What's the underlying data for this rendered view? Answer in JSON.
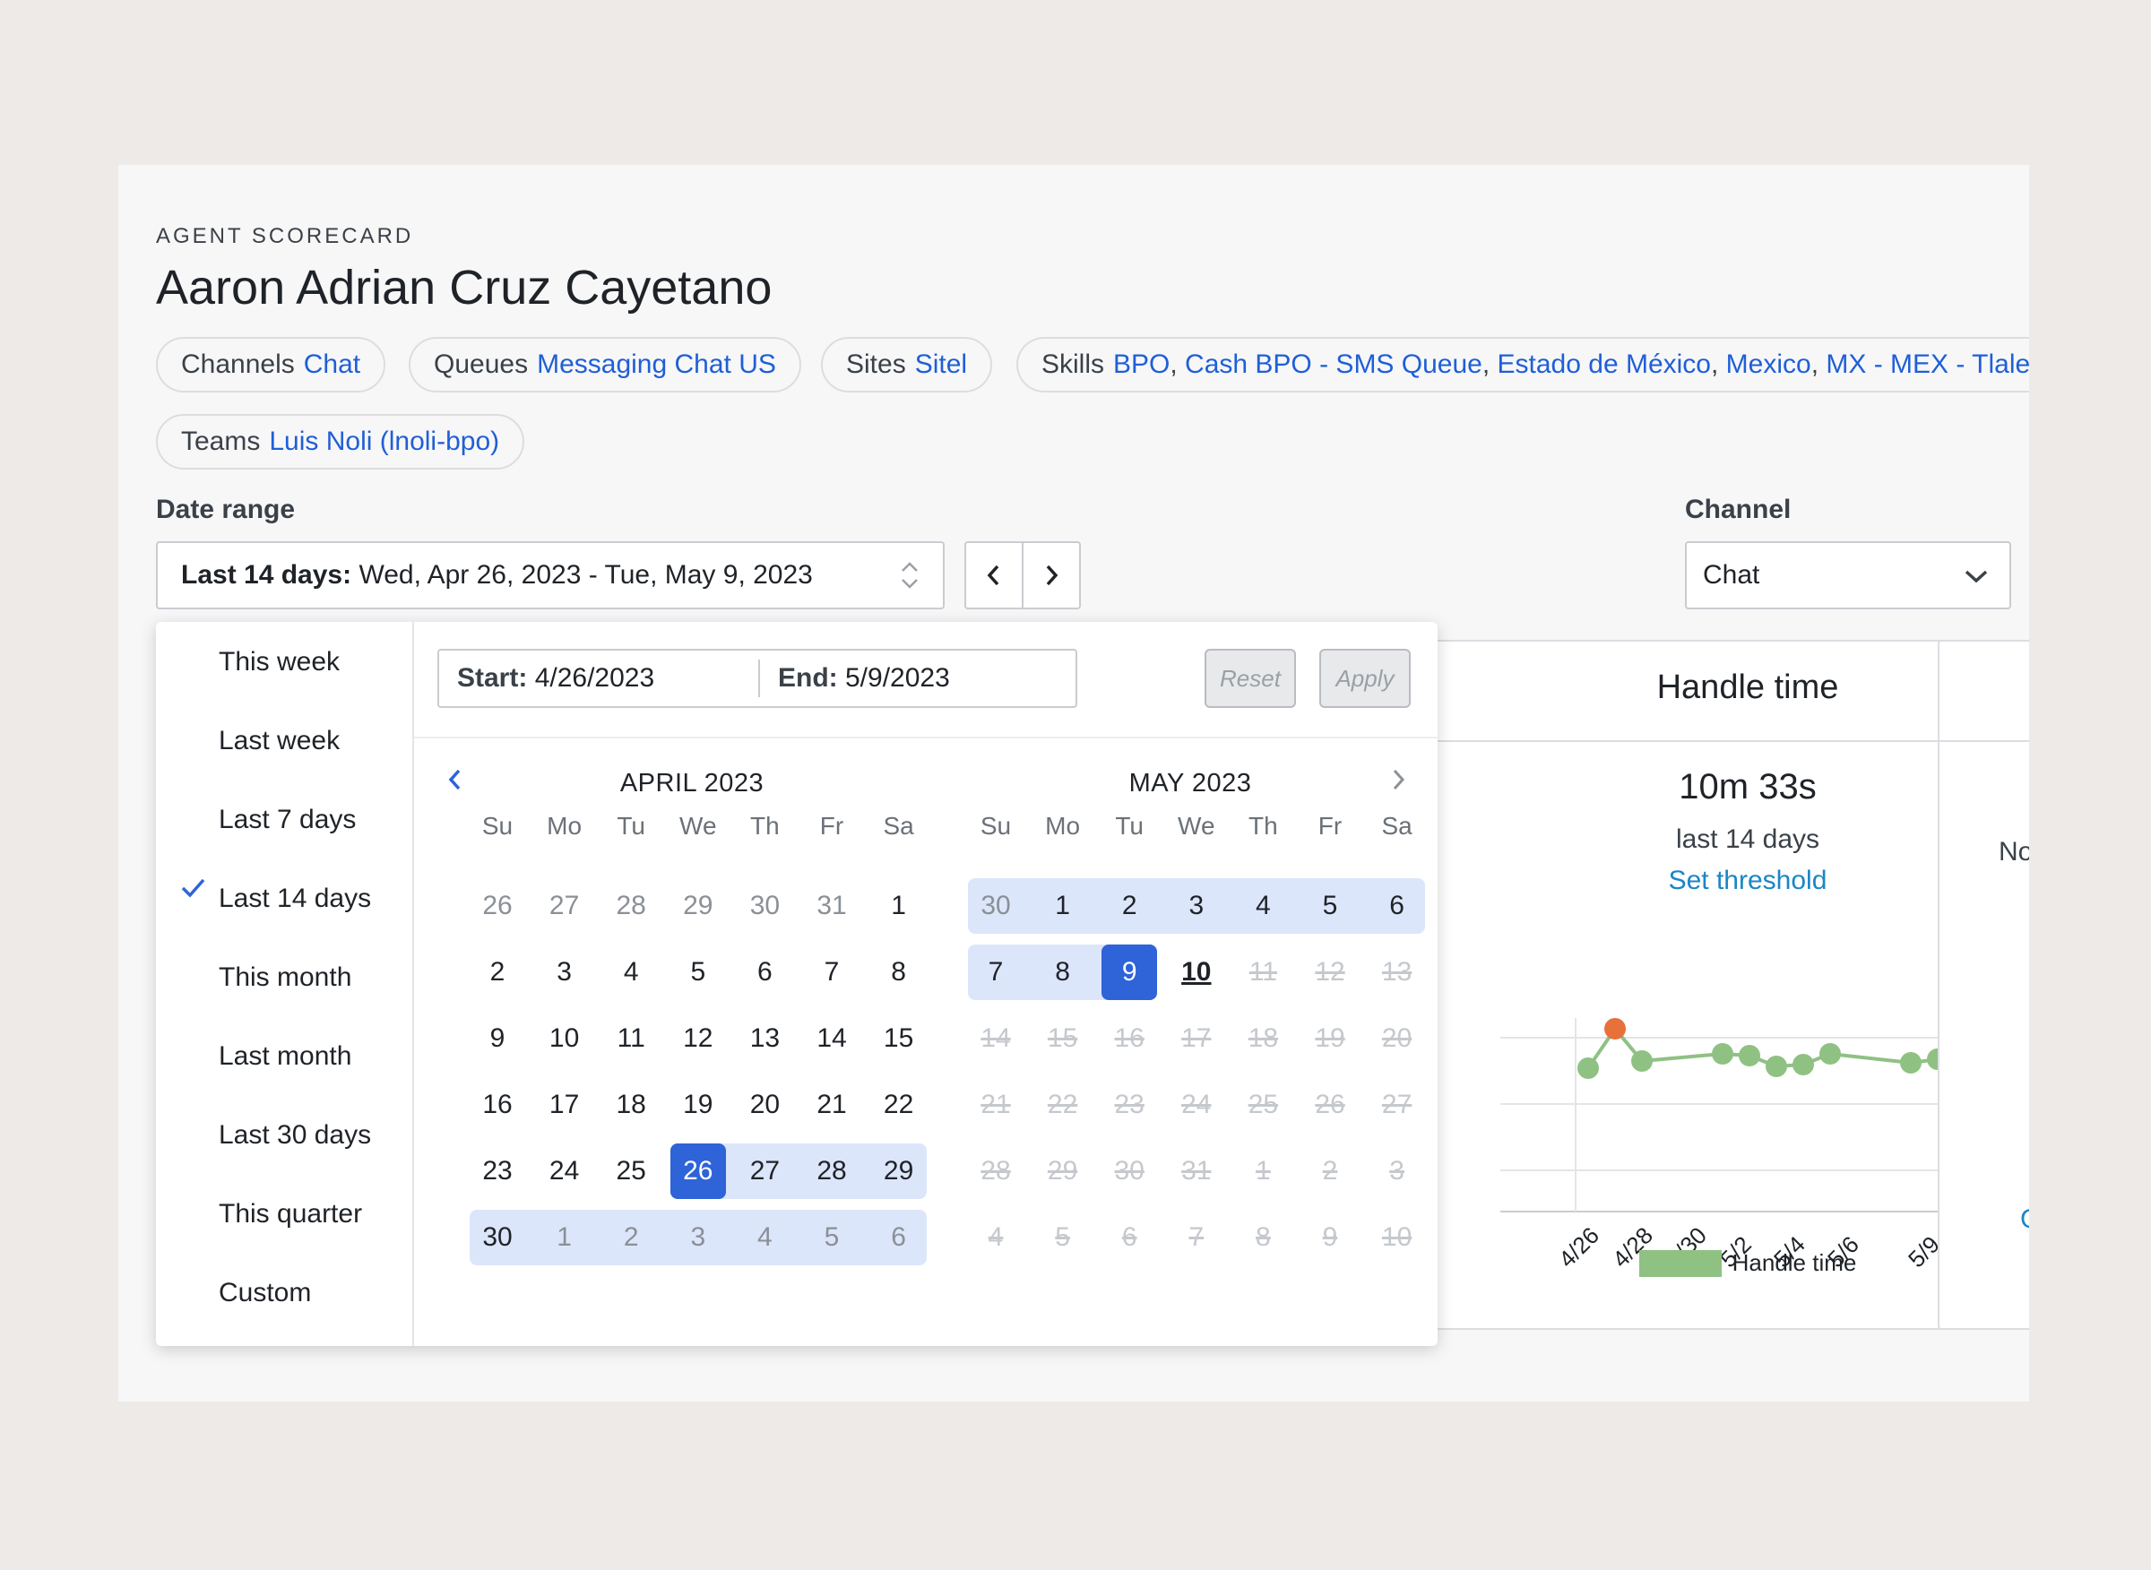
{
  "header": {
    "eyebrow": "AGENT SCORECARD",
    "agent_name": "Aaron Adrian Cruz Cayetano"
  },
  "filters": {
    "channels": {
      "label": "Channels",
      "value": "Chat"
    },
    "queues": {
      "label": "Queues",
      "value": "Messaging Chat US"
    },
    "sites": {
      "label": "Sites",
      "value": "Sitel"
    },
    "skills": {
      "label": "Skills",
      "values": [
        "BPO",
        "Cash BPO - SMS Queue",
        "Estado de México",
        "Mexico",
        "MX - MEX - Tlaler"
      ]
    },
    "teams": {
      "label": "Teams",
      "value": "Luis Noli (lnoli-bpo)"
    }
  },
  "date_range": {
    "label": "Date range",
    "preset": "Last 14 days:",
    "value": "Wed, Apr 26, 2023 - Tue, May 9, 2023",
    "prev_icon": "chevron-left-icon",
    "next_icon": "chevron-right-icon"
  },
  "channel": {
    "label": "Channel",
    "selected": "Chat"
  },
  "popover": {
    "presets": [
      "This week",
      "Last week",
      "Last 7 days",
      "Last 14 days",
      "This month",
      "Last month",
      "Last 30 days",
      "This quarter",
      "Custom"
    ],
    "active_preset": "Last 14 days",
    "start_label": "Start:",
    "start_value": "4/26/2023",
    "end_label": "End:",
    "end_value": "5/9/2023",
    "reset_label": "Reset",
    "apply_label": "Apply",
    "weekdays": [
      "Su",
      "Mo",
      "Tu",
      "We",
      "Th",
      "Fr",
      "Sa"
    ],
    "months": [
      {
        "title": "APRIL 2023",
        "weeks": [
          [
            "26",
            "27",
            "28",
            "29",
            "30",
            "31",
            "1"
          ],
          [
            "2",
            "3",
            "4",
            "5",
            "6",
            "7",
            "8"
          ],
          [
            "9",
            "10",
            "11",
            "12",
            "13",
            "14",
            "15"
          ],
          [
            "16",
            "17",
            "18",
            "19",
            "20",
            "21",
            "22"
          ],
          [
            "23",
            "24",
            "25",
            "26",
            "27",
            "28",
            "29"
          ],
          [
            "30",
            "1",
            "2",
            "3",
            "4",
            "5",
            "6"
          ]
        ]
      },
      {
        "title": "MAY 2023",
        "weeks": [
          [
            "30",
            "1",
            "2",
            "3",
            "4",
            "5",
            "6"
          ],
          [
            "7",
            "8",
            "9",
            "10",
            "11",
            "12",
            "13"
          ],
          [
            "14",
            "15",
            "16",
            "17",
            "18",
            "19",
            "20"
          ],
          [
            "21",
            "22",
            "23",
            "24",
            "25",
            "26",
            "27"
          ],
          [
            "28",
            "29",
            "30",
            "31",
            "1",
            "2",
            "3"
          ],
          [
            "4",
            "5",
            "6",
            "7",
            "8",
            "9",
            "10"
          ]
        ]
      }
    ]
  },
  "handle_time_card": {
    "title": "Handle time",
    "value": "10m 33s",
    "period": "last 14 days",
    "threshold_link": "Set threshold",
    "legend": "Handle time",
    "x_ticks": [
      "4/26",
      "4/28",
      "4/30",
      "5/2",
      "5/4",
      "5/6",
      "5/9"
    ]
  },
  "right_card": {
    "partial_text": "No",
    "partial_link": "C"
  },
  "colors": {
    "accent": "#2f63d8",
    "link": "#1f5fd6",
    "line": "#8fc183",
    "highlight_point": "#e8703a"
  }
}
